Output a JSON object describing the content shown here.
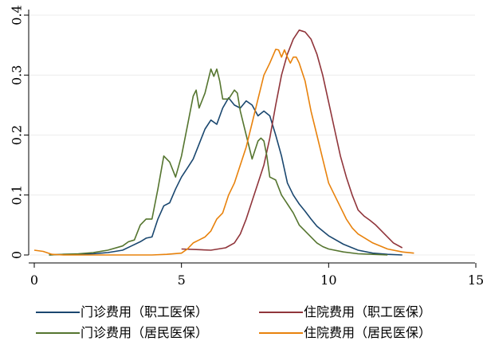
{
  "chart_data": {
    "type": "line",
    "title": "",
    "xlabel": "",
    "ylabel": "",
    "xlim": [
      0,
      15
    ],
    "ylim": [
      0,
      0.4
    ],
    "xticks": [
      0,
      5,
      10,
      15
    ],
    "yticks": [
      0,
      0.1,
      0.2,
      0.3,
      0.4
    ],
    "xtick_labels": [
      "0",
      "5",
      "10",
      "15"
    ],
    "ytick_labels": [
      "0",
      "0.1",
      "0.2",
      "0.3",
      "0.4"
    ],
    "grid": "horizontal",
    "legend_position": "bottom",
    "series": [
      {
        "name": "门诊费用（职工医保）",
        "color": "#1a476f",
        "x": [
          0.5,
          1,
          1.5,
          2,
          2.5,
          3,
          3.3,
          3.6,
          3.8,
          4.0,
          4.2,
          4.4,
          4.6,
          4.8,
          5.0,
          5.2,
          5.4,
          5.6,
          5.8,
          6.0,
          6.2,
          6.4,
          6.6,
          6.8,
          7.0,
          7.2,
          7.4,
          7.6,
          7.8,
          8.0,
          8.2,
          8.4,
          8.6,
          8.8,
          9.0,
          9.2,
          9.4,
          9.6,
          9.8,
          10.0,
          10.5,
          11.0,
          11.5,
          12.0,
          12.5
        ],
        "y": [
          0.0,
          0.001,
          0.001,
          0.002,
          0.004,
          0.008,
          0.015,
          0.022,
          0.028,
          0.03,
          0.06,
          0.082,
          0.087,
          0.11,
          0.13,
          0.145,
          0.16,
          0.185,
          0.21,
          0.225,
          0.218,
          0.245,
          0.262,
          0.25,
          0.245,
          0.257,
          0.25,
          0.232,
          0.24,
          0.232,
          0.2,
          0.165,
          0.12,
          0.1,
          0.085,
          0.073,
          0.06,
          0.048,
          0.04,
          0.032,
          0.018,
          0.008,
          0.003,
          0.001,
          0.0
        ]
      },
      {
        "name": "住院费用（职工医保）",
        "color": "#90353b",
        "x": [
          5.0,
          5.5,
          6.0,
          6.5,
          6.8,
          7.0,
          7.2,
          7.4,
          7.6,
          7.8,
          8.0,
          8.2,
          8.4,
          8.6,
          8.8,
          9.0,
          9.2,
          9.4,
          9.6,
          9.8,
          10.0,
          10.2,
          10.4,
          10.6,
          10.8,
          11.0,
          11.2,
          11.4,
          11.6,
          11.8,
          12.0,
          12.2,
          12.5
        ],
        "y": [
          0.01,
          0.009,
          0.008,
          0.012,
          0.02,
          0.035,
          0.06,
          0.09,
          0.12,
          0.15,
          0.195,
          0.25,
          0.3,
          0.335,
          0.36,
          0.375,
          0.372,
          0.36,
          0.335,
          0.3,
          0.255,
          0.21,
          0.165,
          0.13,
          0.1,
          0.075,
          0.065,
          0.058,
          0.05,
          0.04,
          0.03,
          0.02,
          0.012
        ]
      },
      {
        "name": "门诊费用（居民医保）",
        "color": "#55752f",
        "x": [
          0.5,
          1,
          1.5,
          2,
          2.5,
          3.0,
          3.2,
          3.4,
          3.6,
          3.8,
          4.0,
          4.2,
          4.4,
          4.6,
          4.8,
          5.0,
          5.2,
          5.4,
          5.5,
          5.6,
          5.8,
          6.0,
          6.1,
          6.2,
          6.3,
          6.4,
          6.6,
          6.8,
          6.9,
          7.0,
          7.2,
          7.4,
          7.6,
          7.7,
          7.8,
          7.9,
          8.0,
          8.2,
          8.4,
          8.6,
          8.8,
          9.0,
          9.2,
          9.4,
          9.6,
          9.8,
          10.0,
          10.5,
          11.0,
          11.5,
          12.0
        ],
        "y": [
          0.0,
          0.001,
          0.002,
          0.004,
          0.008,
          0.015,
          0.022,
          0.025,
          0.05,
          0.06,
          0.06,
          0.11,
          0.165,
          0.155,
          0.13,
          0.165,
          0.215,
          0.265,
          0.275,
          0.245,
          0.27,
          0.31,
          0.298,
          0.31,
          0.29,
          0.26,
          0.26,
          0.275,
          0.27,
          0.24,
          0.2,
          0.16,
          0.19,
          0.195,
          0.19,
          0.165,
          0.13,
          0.125,
          0.1,
          0.085,
          0.07,
          0.05,
          0.04,
          0.03,
          0.02,
          0.014,
          0.01,
          0.005,
          0.002,
          0.001,
          0.0
        ]
      },
      {
        "name": "住院费用（居民医保）",
        "color": "#e8820c",
        "x": [
          0.0,
          0.3,
          0.6,
          1.0,
          2.0,
          3.0,
          4.0,
          4.5,
          5.0,
          5.2,
          5.4,
          5.6,
          5.8,
          6.0,
          6.2,
          6.4,
          6.6,
          6.8,
          7.0,
          7.2,
          7.4,
          7.6,
          7.8,
          8.0,
          8.2,
          8.3,
          8.4,
          8.5,
          8.6,
          8.7,
          8.8,
          8.9,
          9.0,
          9.2,
          9.4,
          9.6,
          9.8,
          10.0,
          10.2,
          10.4,
          10.6,
          10.8,
          11.0,
          11.5,
          12.0,
          12.5,
          12.9
        ],
        "y": [
          0.008,
          0.006,
          0.001,
          0.0,
          0.0,
          0.0,
          0.0,
          0.001,
          0.003,
          0.01,
          0.02,
          0.025,
          0.03,
          0.04,
          0.06,
          0.07,
          0.1,
          0.12,
          0.15,
          0.18,
          0.22,
          0.26,
          0.3,
          0.32,
          0.343,
          0.342,
          0.33,
          0.342,
          0.33,
          0.32,
          0.33,
          0.33,
          0.32,
          0.29,
          0.24,
          0.2,
          0.16,
          0.12,
          0.1,
          0.08,
          0.06,
          0.045,
          0.035,
          0.02,
          0.01,
          0.005,
          0.003
        ]
      }
    ]
  }
}
